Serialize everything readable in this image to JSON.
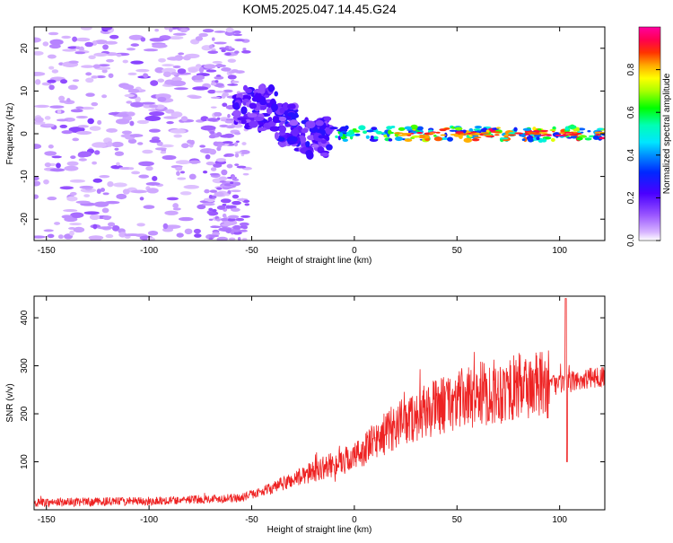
{
  "figure_title": "KOM5.2025.047.14.45.G24",
  "chart_data": [
    {
      "type": "heatmap",
      "title": "KOM5.2025.047.14.45.G24",
      "xlabel": "Height of straight line (km)",
      "ylabel": "Frequency (Hz)",
      "xlim": [
        -156,
        122
      ],
      "ylim": [
        -25,
        25
      ],
      "x_ticks": [
        -150,
        -100,
        -50,
        0,
        50,
        100
      ],
      "y_ticks": [
        -20,
        -10,
        0,
        10,
        20
      ],
      "grid": false,
      "colorbar": {
        "label": "Normalized spectral amplitude",
        "range": [
          0,
          1
        ],
        "ticks": [
          "0.0",
          "0.2",
          "0.4",
          "0.6",
          "0.8"
        ],
        "colormap": "rainbow (white, purple, blue, cyan, green, yellow, orange, red, magenta)"
      },
      "features": [
        {
          "region": "x -156 to -60 km",
          "description": "scattered weak speckle across full frequency band",
          "amplitude": 0.05
        },
        {
          "region": "x -60 to -10 km",
          "description": "noisy cluster around 0 to 8 Hz",
          "amplitude": 0.15
        },
        {
          "region": "x -10 to 122 km",
          "description": "narrow band centred near 0 Hz",
          "amplitude_range": [
            0.3,
            0.95
          ]
        }
      ]
    },
    {
      "type": "line",
      "title": "",
      "xlabel": "Height of straight line (km)",
      "ylabel": "SNR (v/v)",
      "xlim": [
        -156,
        122
      ],
      "ylim": [
        0,
        445
      ],
      "x_ticks": [
        -150,
        -100,
        -50,
        0,
        50,
        100
      ],
      "y_ticks": [
        100,
        200,
        300,
        400
      ],
      "grid": false,
      "series": [
        {
          "color": "#ee2222",
          "trend_x": [
            -156,
            -100,
            -55,
            -40,
            -20,
            0,
            20,
            40,
            60,
            80,
            100,
            122
          ],
          "trend_y": [
            15,
            18,
            25,
            45,
            80,
            110,
            175,
            215,
            240,
            255,
            262,
            280
          ],
          "spikes": [
            {
              "x": 103,
              "y": 440
            },
            {
              "x": 103,
              "y": 100
            }
          ]
        }
      ]
    }
  ]
}
